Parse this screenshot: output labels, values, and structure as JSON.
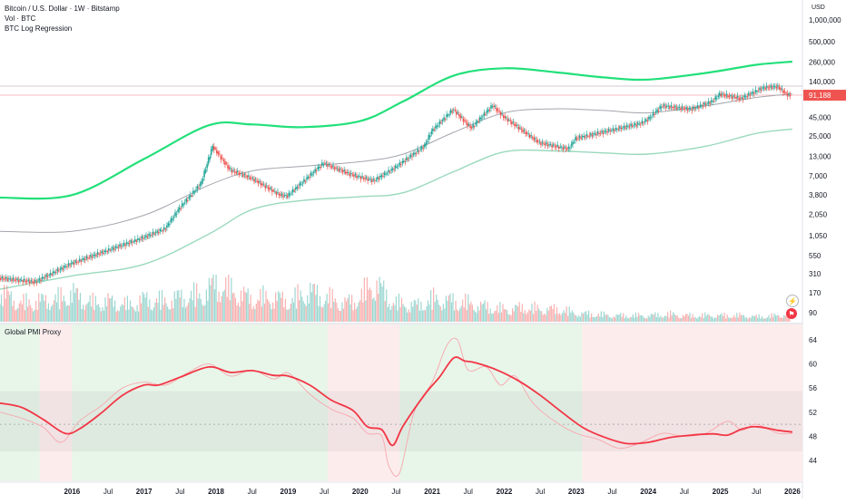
{
  "legend": {
    "symbol_line": "Bitcoin / U.S. Dollar · 1W · Bitstamp",
    "volume": "Vol · BTC",
    "regression": "BTC Log Regression"
  },
  "pmi_title": "Global PMI Proxy",
  "currency": "USD",
  "price_badge": "91,188",
  "icons": [
    "lightning-icon",
    "flag-icon"
  ],
  "colors": {
    "up": "#26a69a",
    "down": "#ef5350",
    "upper_band": "#22e07a",
    "mid_band": "#a3a6ad",
    "lower_band": "#9ad9bd",
    "pmi_main": "#f23645",
    "pmi_raw": "#f7a8ae",
    "expansion_bg": "#e8f5e9",
    "contraction_bg": "#fdecec"
  },
  "chart_data": [
    {
      "type": "candlestick",
      "title": "Bitcoin / U.S. Dollar · 1W · Bitstamp",
      "y_scale": "log",
      "price_ticks": [
        "1,000,000",
        "500,000",
        "260,000",
        "140,000",
        "91,188",
        "45,000",
        "25,000",
        "13,000",
        "7,000",
        "3,800",
        "2,050",
        "1,050",
        "550",
        "310",
        "170",
        "90"
      ],
      "x_labels": [
        "2016",
        "Jul",
        "2017",
        "Jul",
        "2018",
        "Jul",
        "2019",
        "Jul",
        "2020",
        "Jul",
        "2021",
        "Jul",
        "2022",
        "Jul",
        "2023",
        "Jul",
        "2024",
        "Jul",
        "2025",
        "Jul",
        "2026"
      ],
      "last_price": 91188,
      "series": [
        {
          "name": "Price",
          "x": [
            2015.0,
            2015.5,
            2016.0,
            2016.5,
            2017.0,
            2017.3,
            2017.5,
            2017.8,
            2017.96,
            2018.2,
            2018.5,
            2018.9,
            2019.0,
            2019.5,
            2019.9,
            2020.2,
            2020.5,
            2020.9,
            2021.0,
            2021.3,
            2021.55,
            2021.85,
            2022.0,
            2022.5,
            2022.9,
            2023.0,
            2023.5,
            2023.9,
            2024.0,
            2024.2,
            2024.6,
            2024.9,
            2025.0,
            2025.3,
            2025.6,
            2025.8,
            2025.95
          ],
          "y": [
            270,
            240,
            430,
            650,
            980,
            1300,
            2500,
            5500,
            18000,
            8500,
            6500,
            3800,
            3700,
            10500,
            7200,
            6000,
            9200,
            18000,
            29000,
            58000,
            32000,
            66000,
            46000,
            20000,
            16500,
            23000,
            30000,
            37000,
            42000,
            65000,
            58000,
            75000,
            94000,
            82000,
            115000,
            120000,
            91188
          ]
        },
        {
          "name": "BTC Log Regression upper",
          "x": [
            2015.0,
            2016.0,
            2017.0,
            2017.9,
            2018.5,
            2019.2,
            2020.0,
            2020.6,
            2021.3,
            2022.0,
            2022.7,
            2023.4,
            2024.0,
            2024.8,
            2025.5,
            2026.0
          ],
          "y": [
            3500,
            3800,
            12000,
            35000,
            36000,
            33000,
            40000,
            75000,
            170000,
            215000,
            190000,
            160000,
            150000,
            185000,
            240000,
            265000
          ]
        },
        {
          "name": "BTC Log Regression mid",
          "x": [
            2015.0,
            2016.0,
            2017.0,
            2017.9,
            2018.5,
            2019.2,
            2020.0,
            2020.6,
            2021.3,
            2022.0,
            2022.7,
            2023.4,
            2024.0,
            2024.8,
            2025.5,
            2026.0
          ],
          "y": [
            1200,
            1200,
            2000,
            5200,
            8200,
            9500,
            11000,
            14000,
            28000,
            52000,
            59000,
            56000,
            52000,
            65000,
            85000,
            95000
          ]
        },
        {
          "name": "BTC Log Regression lower",
          "x": [
            2015.0,
            2016.0,
            2017.0,
            2017.9,
            2018.5,
            2019.2,
            2020.0,
            2020.6,
            2021.3,
            2022.0,
            2022.7,
            2023.4,
            2024.0,
            2024.8,
            2025.5,
            2026.0
          ],
          "y": [
            190,
            290,
            420,
            1100,
            2400,
            3200,
            3600,
            4100,
            8000,
            15000,
            15500,
            14500,
            14000,
            18000,
            27000,
            31000
          ]
        }
      ]
    },
    {
      "type": "bar",
      "title": "Vol · BTC",
      "x": [
        2015.0,
        2015.3,
        2015.5,
        2015.8,
        2016.0,
        2016.3,
        2016.5,
        2016.8,
        2017.0,
        2017.3,
        2017.5,
        2017.8,
        2018.0,
        2018.3,
        2018.5,
        2018.8,
        2019.0,
        2019.3,
        2019.5,
        2019.8,
        2020.0,
        2020.2,
        2020.5,
        2020.8,
        2021.0,
        2021.3,
        2021.5,
        2021.8,
        2022.0,
        2022.3,
        2022.5,
        2022.8,
        2023.0,
        2023.3,
        2023.5,
        2023.8,
        2024.0,
        2024.3,
        2024.5,
        2024.8,
        2025.0,
        2025.3,
        2025.5,
        2025.8,
        2025.95
      ],
      "values": [
        0.75,
        0.45,
        0.5,
        0.55,
        0.7,
        0.45,
        0.5,
        0.4,
        0.55,
        0.5,
        0.6,
        0.65,
        0.95,
        0.7,
        0.55,
        0.6,
        0.5,
        0.75,
        0.6,
        0.45,
        0.6,
        1.0,
        0.45,
        0.4,
        0.55,
        0.5,
        0.45,
        0.35,
        0.3,
        0.35,
        0.3,
        0.3,
        0.2,
        0.18,
        0.15,
        0.15,
        0.15,
        0.18,
        0.15,
        0.15,
        0.15,
        0.15,
        0.12,
        0.15,
        0.2
      ]
    },
    {
      "type": "line",
      "title": "Global PMI Proxy",
      "y_ticks": [
        64,
        60,
        56,
        52,
        48,
        44
      ],
      "ylim": [
        42,
        66
      ],
      "series": [
        {
          "name": "Smoothed",
          "x": [
            2015.0,
            2015.3,
            2015.6,
            2015.9,
            2016.1,
            2016.4,
            2016.7,
            2017.0,
            2017.2,
            2017.5,
            2017.9,
            2018.2,
            2018.5,
            2018.8,
            2019.0,
            2019.3,
            2019.6,
            2019.9,
            2020.1,
            2020.3,
            2020.45,
            2020.6,
            2020.9,
            2021.1,
            2021.3,
            2021.45,
            2021.6,
            2021.9,
            2022.2,
            2022.5,
            2022.8,
            2023.1,
            2023.4,
            2023.7,
            2024.0,
            2024.3,
            2024.6,
            2024.9,
            2025.1,
            2025.3,
            2025.5,
            2025.8,
            2026.0
          ],
          "y": [
            53.5,
            52.8,
            50.8,
            48.5,
            49.2,
            51.8,
            54.8,
            56.5,
            56.5,
            57.8,
            59.5,
            58.6,
            58.9,
            58.1,
            58.0,
            56.5,
            54.0,
            52.3,
            49.6,
            49.1,
            46.5,
            49.8,
            55.0,
            57.8,
            61.0,
            60.5,
            60.2,
            59.0,
            57.2,
            54.8,
            52.0,
            49.4,
            47.8,
            46.8,
            47.0,
            47.8,
            48.2,
            48.4,
            48.2,
            49.2,
            49.6,
            49.0,
            48.7
          ]
        },
        {
          "name": "Raw",
          "x": [
            2015.0,
            2015.3,
            2015.6,
            2015.85,
            2016.1,
            2016.4,
            2016.7,
            2017.0,
            2017.3,
            2017.6,
            2017.9,
            2018.2,
            2018.5,
            2018.8,
            2019.0,
            2019.3,
            2019.6,
            2019.9,
            2020.1,
            2020.3,
            2020.4,
            2020.55,
            2020.75,
            2021.0,
            2021.2,
            2021.35,
            2021.5,
            2021.75,
            2021.95,
            2022.15,
            2022.4,
            2022.7,
            2023.0,
            2023.3,
            2023.6,
            2023.9,
            2024.2,
            2024.5,
            2024.8,
            2025.1,
            2025.3,
            2025.5,
            2025.8,
            2026.0
          ],
          "y": [
            52.0,
            51.0,
            49.5,
            47.0,
            50.5,
            53.0,
            56.0,
            57.0,
            56.5,
            58.5,
            60.0,
            58.0,
            59.0,
            57.5,
            58.5,
            55.0,
            52.5,
            51.0,
            48.5,
            48.0,
            43.0,
            42.0,
            52.0,
            57.0,
            63.0,
            64.0,
            59.0,
            59.5,
            56.5,
            58.0,
            53.5,
            50.5,
            48.5,
            47.5,
            46.0,
            47.0,
            48.5,
            48.0,
            48.5,
            50.5,
            49.0,
            50.0,
            48.5,
            48.5
          ]
        }
      ]
    }
  ]
}
